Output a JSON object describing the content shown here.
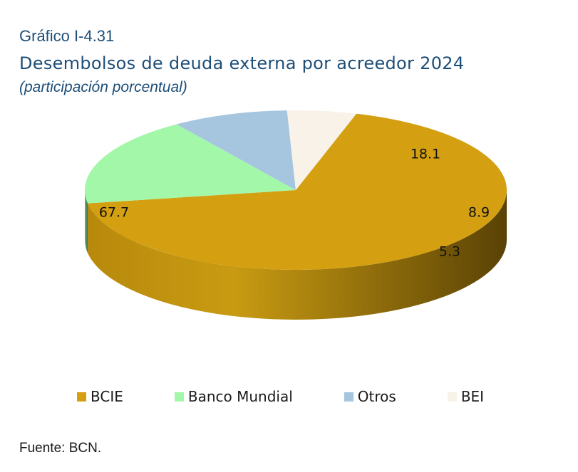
{
  "header": {
    "figure_label": "Gráfico I-4.31",
    "title": "Desembolsos de deuda externa por acreedor 2024",
    "subtitle": "(participación porcentual)"
  },
  "chart_data": {
    "type": "pie",
    "categories": [
      "BCIE",
      "Banco Mundial",
      "Otros",
      "BEI"
    ],
    "values": [
      67.7,
      18.1,
      8.9,
      5.3
    ],
    "data_labels": [
      "67.7",
      "18.1",
      "8.9",
      "5.3"
    ],
    "colors": [
      "#d4a012",
      "#a3f7a9",
      "#a5c6de",
      "#f8f2e9"
    ],
    "legend_position": "bottom",
    "style": "3d-tilted"
  },
  "legend": {
    "items": [
      {
        "label": "BCIE",
        "color": "#d4a012"
      },
      {
        "label": "Banco Mundial",
        "color": "#a3f7a9"
      },
      {
        "label": "Otros",
        "color": "#a5c6de"
      },
      {
        "label": "BEI",
        "color": "#f8f2e9"
      }
    ]
  },
  "footer": {
    "source": "Fuente: BCN."
  }
}
